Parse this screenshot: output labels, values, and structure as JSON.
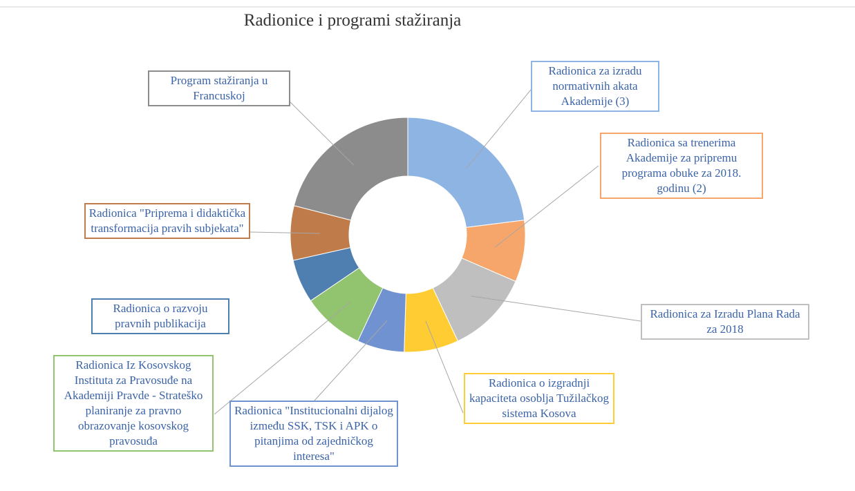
{
  "chart_data": {
    "type": "donut",
    "title": "Radionice i programi stažiranja",
    "categories": [
      "Radionica za izradu normativnih akata Akademije (3)",
      "Radionica sa trenerima Akademije za pripremu programa obuke za 2018. godinu (2)",
      "Radionica za Izradu Plana Rada za 2018",
      "Radionica o izgradnji kapaciteta osoblja Tužilačkog sistema Kosova",
      "Radionica \"Institucionalni dijalog između SSK, TSK i APK o pitanjima od zajedničkog interesa\"",
      "Radionica Iz Kosovskog Instituta za Pravosuđe na Akademiji Pravde - Strateško planiranje za pravno obrazovanje kosovskog pravosuđa",
      "Radionica o razvoju pravnih publikacija",
      "Radionica \"Priprema i didaktička transformacija pravih subjekata\"",
      "Program stažiranja u Francuskoj"
    ],
    "values": [
      23,
      8.5,
      11.5,
      7.5,
      6.5,
      8.5,
      6,
      7.5,
      21
    ],
    "colors": [
      "#8db4e2",
      "#f6a66a",
      "#bfbfbf",
      "#ffcc33",
      "#7092d0",
      "#92c36e",
      "#4f7fb0",
      "#c07b4a",
      "#8c8c8c"
    ]
  }
}
